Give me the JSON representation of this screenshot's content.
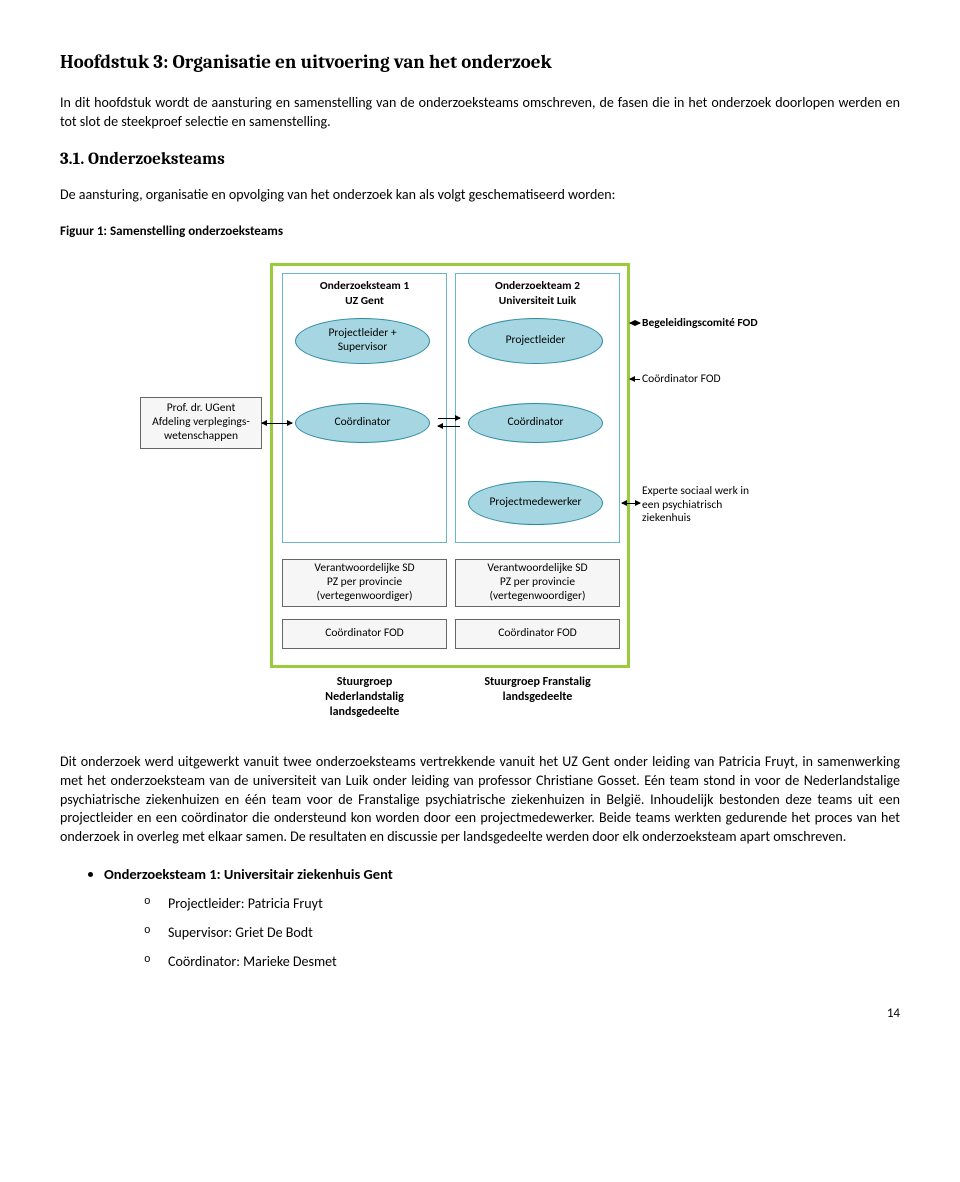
{
  "heading": "Hoofdstuk 3: Organisatie en uitvoering van het onderzoek",
  "intro": "In dit hoofdstuk wordt de aansturing en samenstelling van de onderzoeksteams omschreven, de fasen die in het onderzoek doorlopen werden en tot slot de steekproef selectie en samenstelling.",
  "sub_heading": "3.1. Onderzoeksteams",
  "sub_intro": "De aansturing, organisatie en opvolging van het onderzoek kan als volgt geschematiseerd worden:",
  "fig_caption": "Figuur 1: Samenstelling onderzoeksteams",
  "colors": {
    "frame": "#9acb3c",
    "col_border": "#6bb6c9",
    "ell_fill": "#a6d6e2",
    "rect_fill": "#f4f4f4"
  },
  "diagram": {
    "col1_title": "Onderzoeksteam 1\nUZ Gent",
    "col2_title": "Onderzoekteam 2\nUniversiteit Luik",
    "left_box": "Prof. dr. UGent\nAfdeling verplegings-\nwetenschappen",
    "e_projsup": "Projectleider +\nSupervisor",
    "e_projleider": "Projectleider",
    "e_coord": "Coördinator",
    "e_projmed": "Projectmedewerker",
    "right_begeleid": "Begeleidingscomité FOD",
    "right_coordfod": "Coördinator FOD",
    "right_experte": "Experte sociaal werk in\neen psychiatrisch\nziekenhuis",
    "rect_verant": "Verantwoordelijke SD\nPZ per provincie\n(vertegenwoordiger)",
    "rect_coordfod": "Coördinator FOD",
    "stuur1": "Stuurgroep\nNederlandstalig\nlandsgedeelte",
    "stuur2": "Stuurgroep Franstalig\nlandsgedeelte"
  },
  "body_para": "Dit onderzoek werd uitgewerkt vanuit twee onderzoeksteams vertrekkende vanuit het UZ Gent onder leiding van Patricia Fruyt, in samenwerking met het onderzoeksteam van de universiteit van Luik onder leiding van professor Christiane Gosset. Eén team stond in voor de Nederlandstalige psychiatrische ziekenhuizen en één team voor de Franstalige psychiatrische ziekenhuizen in België. Inhoudelijk bestonden deze teams uit een projectleider en een coördinator die ondersteund kon worden door een projectmedewerker. Beide teams werkten gedurende het proces van het onderzoek in overleg met elkaar samen. De resultaten en discussie per landsgedeelte werden door elk onderzoeksteam apart omschreven.",
  "list_heading": "Onderzoeksteam 1: Universitair ziekenhuis Gent",
  "items": [
    "Projectleider: Patricia Fruyt",
    "Supervisor: Griet De Bodt",
    "Coördinator: Marieke Desmet"
  ],
  "page_number": "14"
}
